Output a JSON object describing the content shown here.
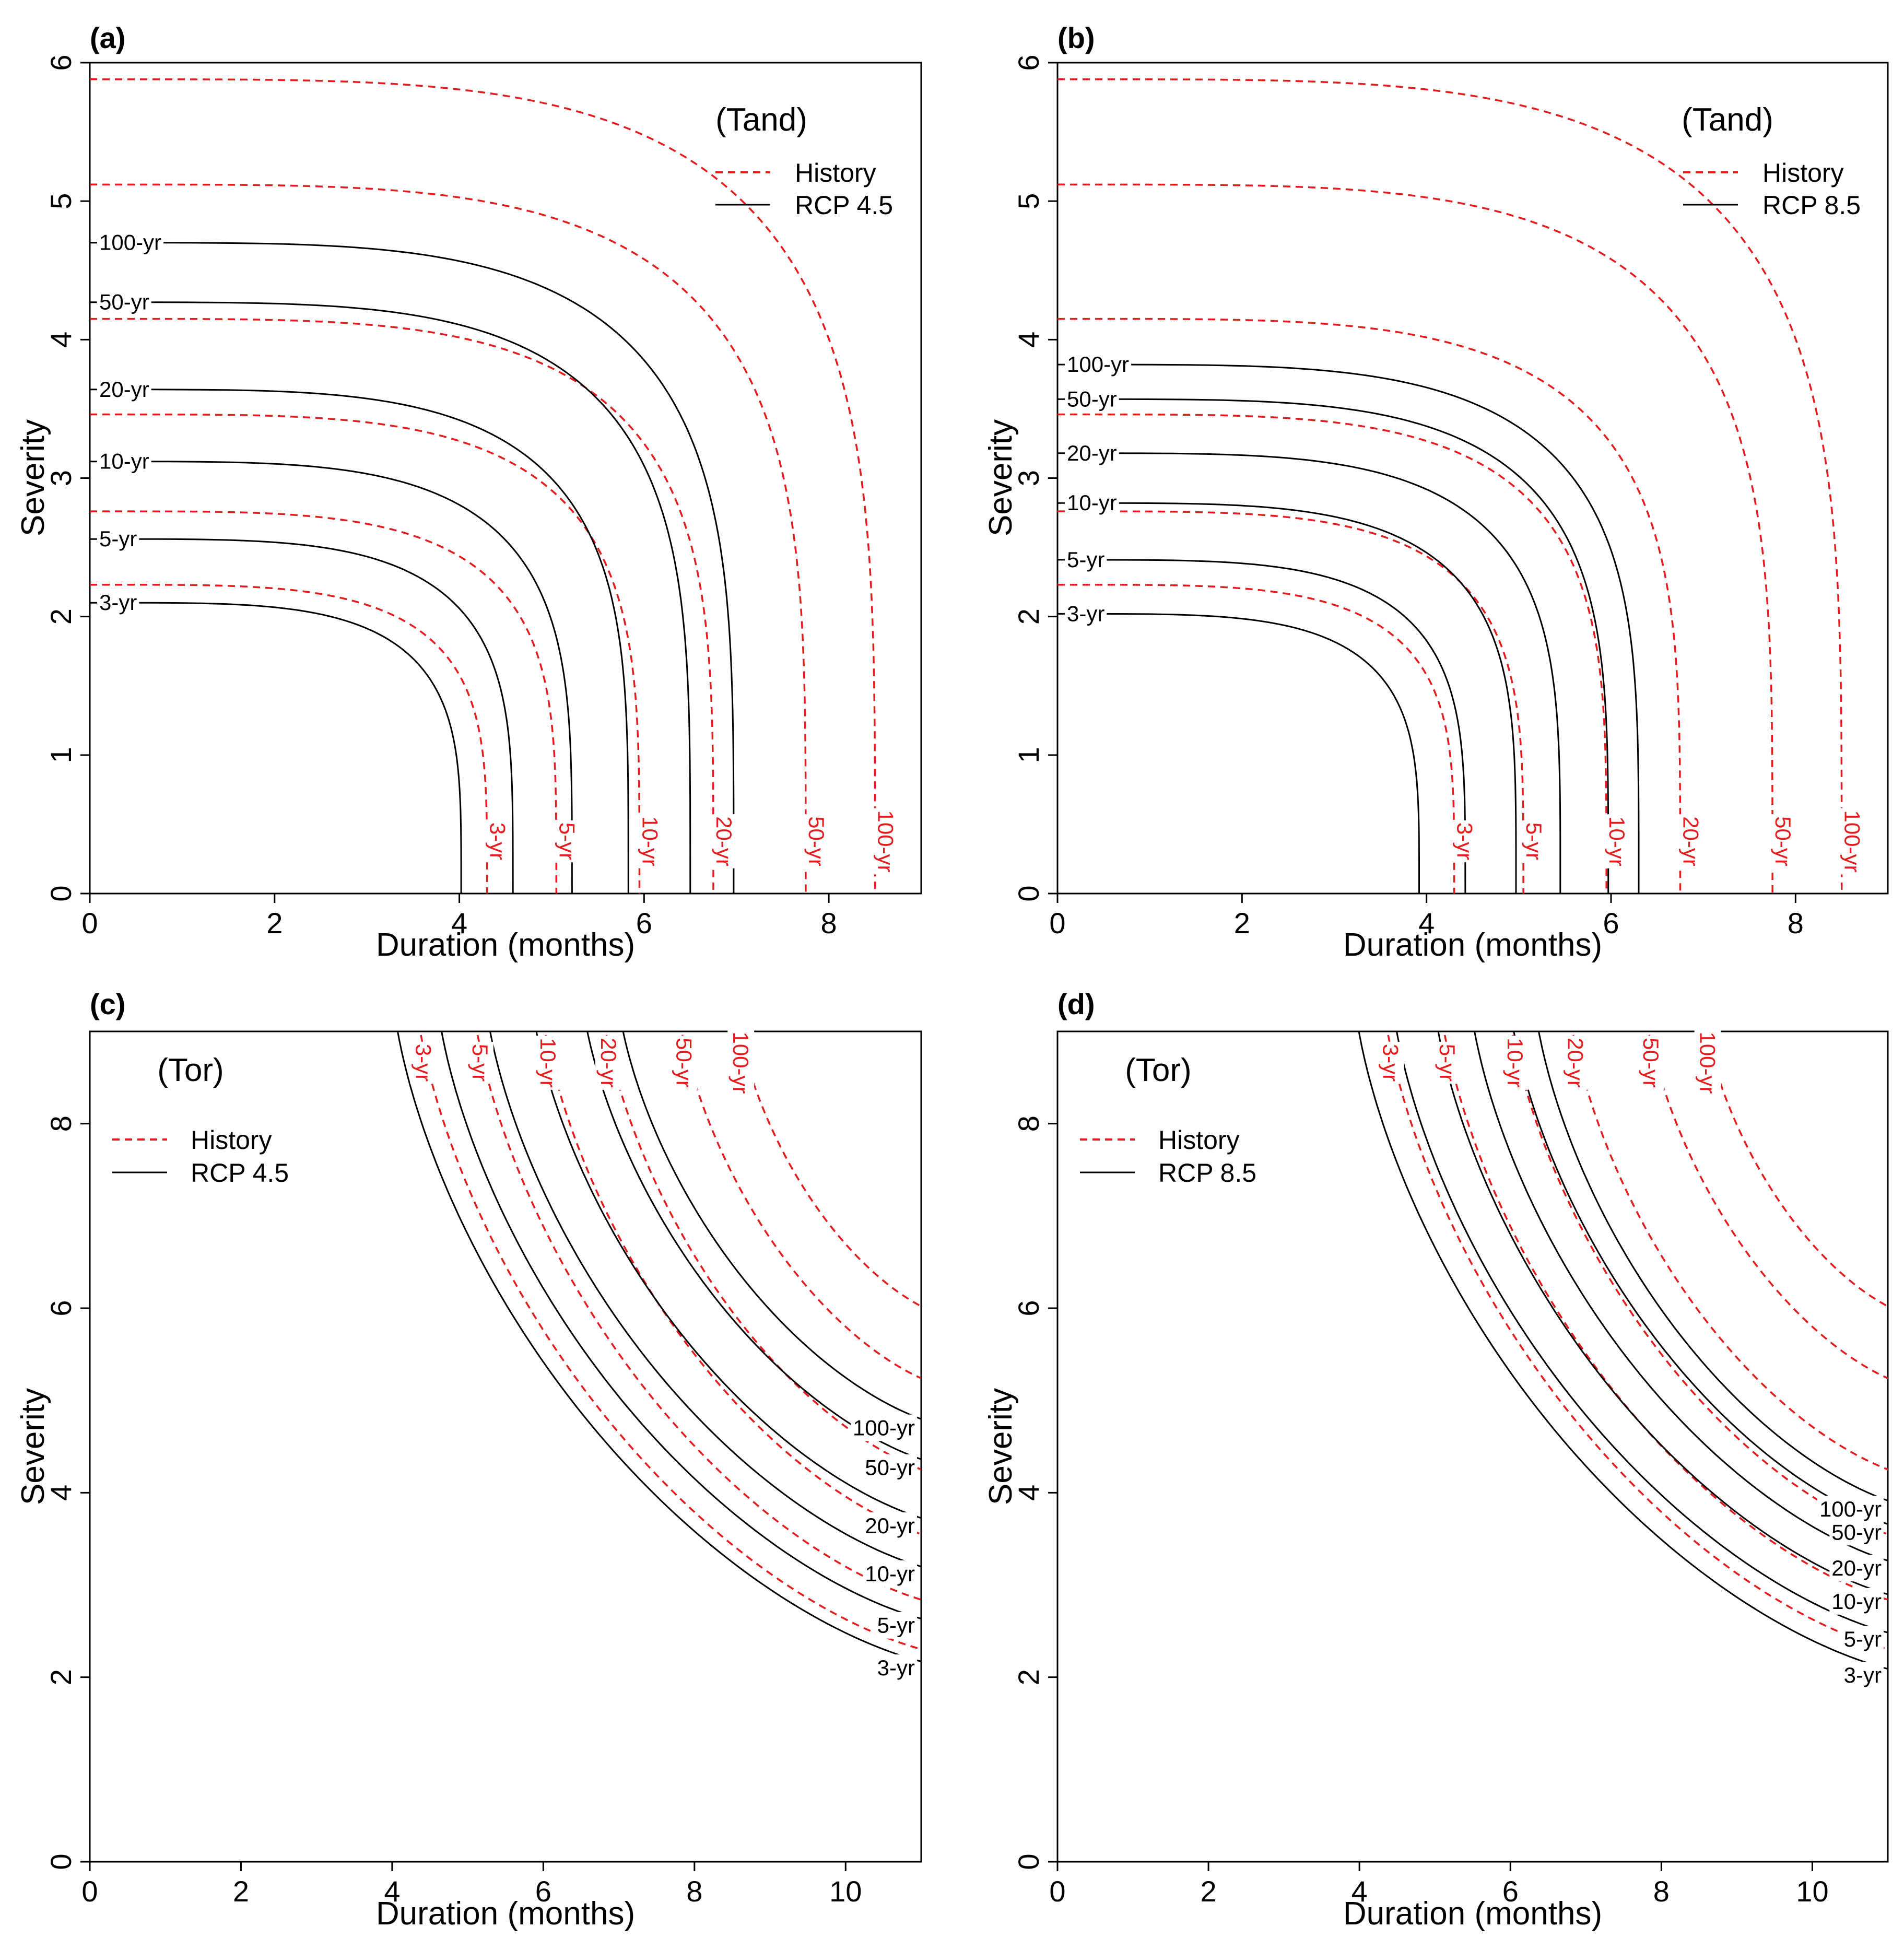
{
  "colors": {
    "history": "#e41a1c",
    "future": "#000000",
    "frame": "#000000"
  },
  "chart_data": [
    {
      "panel": "(a)",
      "type": "line",
      "subtitle": "(Tand)",
      "xlabel": "Duration (months)",
      "ylabel": "Severity",
      "xlim": [
        0,
        9
      ],
      "ylim": [
        0,
        6
      ],
      "xticks": [
        "0",
        "2",
        "4",
        "6",
        "8"
      ],
      "yticks": [
        "0",
        "1",
        "2",
        "3",
        "4",
        "5",
        "6"
      ],
      "legend": [
        "History",
        "RCP 4.5"
      ],
      "legend_position": "top-right",
      "series": [
        {
          "name": "History",
          "period": "3-yr",
          "label": "3-yr",
          "d": 4.3,
          "s": 2.23
        },
        {
          "name": "History",
          "period": "5-yr",
          "label": "5-yr",
          "d": 5.05,
          "s": 2.76
        },
        {
          "name": "History",
          "period": "10-yr",
          "label": "10-yr",
          "d": 5.95,
          "s": 3.46
        },
        {
          "name": "History",
          "period": "20-yr",
          "label": "20-yr",
          "d": 6.75,
          "s": 4.15
        },
        {
          "name": "History",
          "period": "50-yr",
          "label": "50-yr",
          "d": 7.75,
          "s": 5.12
        },
        {
          "name": "History",
          "period": "100-yr",
          "label": "100-yr",
          "d": 8.5,
          "s": 5.88
        },
        {
          "name": "RCP 4.5",
          "period": "3-yr",
          "label": "3-yr",
          "d": 4.02,
          "s": 2.1
        },
        {
          "name": "RCP 4.5",
          "period": "5-yr",
          "label": "5-yr",
          "d": 4.58,
          "s": 2.56
        },
        {
          "name": "RCP 4.5",
          "period": "10-yr",
          "label": "10-yr",
          "d": 5.22,
          "s": 3.12
        },
        {
          "name": "RCP 4.5",
          "period": "20-yr",
          "label": "20-yr",
          "d": 5.83,
          "s": 3.64
        },
        {
          "name": "RCP 4.5",
          "period": "50-yr",
          "label": "50-yr",
          "d": 6.5,
          "s": 4.27
        },
        {
          "name": "RCP 4.5",
          "period": "100-yr",
          "label": "100-yr",
          "d": 6.97,
          "s": 4.7
        }
      ]
    },
    {
      "panel": "(b)",
      "type": "line",
      "subtitle": "(Tand)",
      "xlabel": "Duration (months)",
      "ylabel": "Severity",
      "xlim": [
        0,
        9
      ],
      "ylim": [
        0,
        6
      ],
      "xticks": [
        "0",
        "2",
        "4",
        "6",
        "8"
      ],
      "yticks": [
        "0",
        "1",
        "2",
        "3",
        "4",
        "5",
        "6"
      ],
      "legend": [
        "History",
        "RCP 8.5"
      ],
      "legend_position": "top-right",
      "series": [
        {
          "name": "History",
          "period": "3-yr",
          "label": "3-yr",
          "d": 4.3,
          "s": 2.23
        },
        {
          "name": "History",
          "period": "5-yr",
          "label": "5-yr",
          "d": 5.05,
          "s": 2.76
        },
        {
          "name": "History",
          "period": "10-yr",
          "label": "10-yr",
          "d": 5.95,
          "s": 3.46
        },
        {
          "name": "History",
          "period": "20-yr",
          "label": "20-yr",
          "d": 6.75,
          "s": 4.15
        },
        {
          "name": "History",
          "period": "50-yr",
          "label": "50-yr",
          "d": 7.75,
          "s": 5.12
        },
        {
          "name": "History",
          "period": "100-yr",
          "label": "100-yr",
          "d": 8.5,
          "s": 5.88
        },
        {
          "name": "RCP 8.5",
          "period": "3-yr",
          "label": "3-yr",
          "d": 3.92,
          "s": 2.02
        },
        {
          "name": "RCP 8.5",
          "period": "5-yr",
          "label": "5-yr",
          "d": 4.42,
          "s": 2.41
        },
        {
          "name": "RCP 8.5",
          "period": "10-yr",
          "label": "10-yr",
          "d": 4.97,
          "s": 2.82
        },
        {
          "name": "RCP 8.5",
          "period": "20-yr",
          "label": "20-yr",
          "d": 5.45,
          "s": 3.18
        },
        {
          "name": "RCP 8.5",
          "period": "50-yr",
          "label": "50-yr",
          "d": 5.97,
          "s": 3.57
        },
        {
          "name": "RCP 8.5",
          "period": "100-yr",
          "label": "100-yr",
          "d": 6.3,
          "s": 3.82
        }
      ]
    },
    {
      "panel": "(c)",
      "type": "line",
      "subtitle": "(Tor)",
      "xlabel": "Duration (months)",
      "ylabel": "Severity",
      "xlim": [
        0,
        11
      ],
      "ylim": [
        0,
        9
      ],
      "xticks": [
        "0",
        "2",
        "4",
        "6",
        "8",
        "10"
      ],
      "yticks": [
        "0",
        "2",
        "4",
        "6",
        "8"
      ],
      "legend": [
        "History",
        "RCP 4.5"
      ],
      "legend_position": "top-left",
      "series": [
        {
          "name": "History",
          "period": "3-yr",
          "label": "3-yr",
          "d": 4.3,
          "s": 2.23
        },
        {
          "name": "History",
          "period": "5-yr",
          "label": "5-yr",
          "d": 5.05,
          "s": 2.76
        },
        {
          "name": "History",
          "period": "10-yr",
          "label": "10-yr",
          "d": 5.95,
          "s": 3.46
        },
        {
          "name": "History",
          "period": "20-yr",
          "label": "20-yr",
          "d": 6.75,
          "s": 4.15
        },
        {
          "name": "History",
          "period": "50-yr",
          "label": "50-yr",
          "d": 7.75,
          "s": 5.12
        },
        {
          "name": "History",
          "period": "100-yr",
          "label": "100-yr",
          "d": 8.5,
          "s": 5.88
        },
        {
          "name": "RCP 4.5",
          "period": "3-yr",
          "label": "3-yr",
          "d": 4.0,
          "s": 2.1
        },
        {
          "name": "RCP 4.5",
          "period": "5-yr",
          "label": "5-yr",
          "d": 4.58,
          "s": 2.56
        },
        {
          "name": "RCP 4.5",
          "period": "10-yr",
          "label": "10-yr",
          "d": 5.22,
          "s": 3.12
        },
        {
          "name": "RCP 4.5",
          "period": "20-yr",
          "label": "20-yr",
          "d": 5.83,
          "s": 3.64
        },
        {
          "name": "RCP 4.5",
          "period": "50-yr",
          "label": "50-yr",
          "d": 6.5,
          "s": 4.27
        },
        {
          "name": "RCP 4.5",
          "period": "100-yr",
          "label": "100-yr",
          "d": 6.97,
          "s": 4.7
        }
      ]
    },
    {
      "panel": "(d)",
      "type": "line",
      "subtitle": "(Tor)",
      "xlabel": "Duration (months)",
      "ylabel": "Severity",
      "xlim": [
        0,
        11
      ],
      "ylim": [
        0,
        9
      ],
      "xticks": [
        "0",
        "2",
        "4",
        "6",
        "8",
        "10"
      ],
      "yticks": [
        "0",
        "2",
        "4",
        "6",
        "8"
      ],
      "legend": [
        "History",
        "RCP 8.5"
      ],
      "legend_position": "top-left",
      "series": [
        {
          "name": "History",
          "period": "3-yr",
          "label": "3-yr",
          "d": 4.3,
          "s": 2.23
        },
        {
          "name": "History",
          "period": "5-yr",
          "label": "5-yr",
          "d": 5.05,
          "s": 2.76
        },
        {
          "name": "History",
          "period": "10-yr",
          "label": "10-yr",
          "d": 5.95,
          "s": 3.46
        },
        {
          "name": "History",
          "period": "20-yr",
          "label": "20-yr",
          "d": 6.75,
          "s": 4.15
        },
        {
          "name": "History",
          "period": "50-yr",
          "label": "50-yr",
          "d": 7.75,
          "s": 5.12
        },
        {
          "name": "History",
          "period": "100-yr",
          "label": "100-yr",
          "d": 8.5,
          "s": 5.88
        },
        {
          "name": "RCP 8.5",
          "period": "3-yr",
          "label": "3-yr",
          "d": 3.92,
          "s": 2.02
        },
        {
          "name": "RCP 8.5",
          "period": "5-yr",
          "label": "5-yr",
          "d": 4.42,
          "s": 2.41
        },
        {
          "name": "RCP 8.5",
          "period": "10-yr",
          "label": "10-yr",
          "d": 4.97,
          "s": 2.82
        },
        {
          "name": "RCP 8.5",
          "period": "20-yr",
          "label": "20-yr",
          "d": 5.45,
          "s": 3.18
        },
        {
          "name": "RCP 8.5",
          "period": "50-yr",
          "label": "50-yr",
          "d": 5.97,
          "s": 3.57
        },
        {
          "name": "RCP 8.5",
          "period": "100-yr",
          "label": "100-yr",
          "d": 6.3,
          "s": 3.82
        }
      ]
    }
  ]
}
